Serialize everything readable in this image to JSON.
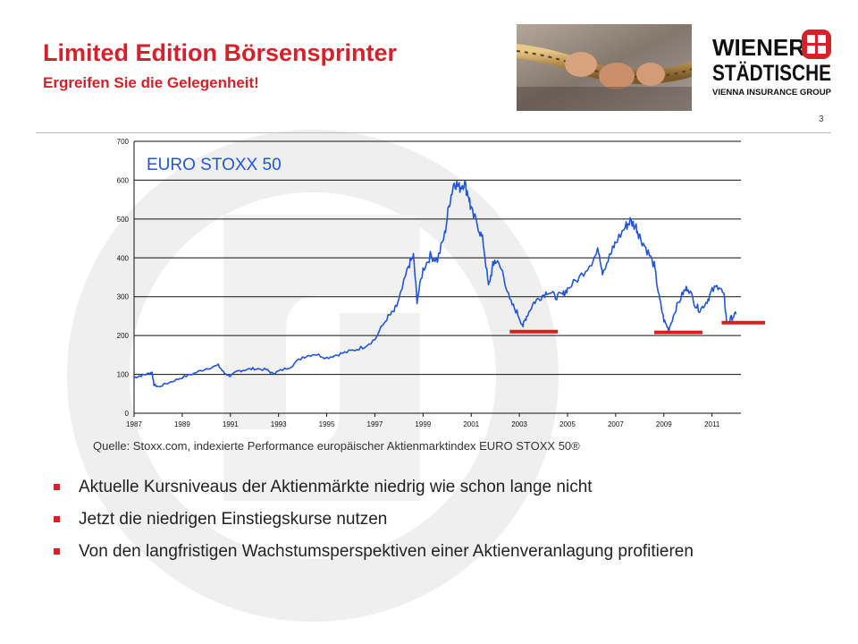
{
  "header": {
    "title": "Limited Edition Börsensprinter",
    "subtitle": "Ergreifen Sie die Gelegenheit!",
    "page_number": "3"
  },
  "logo": {
    "line1": "WIENER",
    "line2": "STÄDTISCHE",
    "line3": "VIENNA INSURANCE GROUP",
    "brand_color": "#d6212b"
  },
  "photo": {
    "subject": "hands-pulling-rope"
  },
  "chart_data": {
    "type": "line",
    "title": "EURO STOXX 50",
    "xlim": [
      1987,
      2012.2
    ],
    "ylim": [
      0,
      700
    ],
    "x_ticks": [
      "1987",
      "1989",
      "1991",
      "1993",
      "1995",
      "1997",
      "1999",
      "2001",
      "2003",
      "2005",
      "2007",
      "2009",
      "2011"
    ],
    "y_ticks": [
      "0",
      "100",
      "200",
      "300",
      "400",
      "500",
      "600",
      "700"
    ],
    "grid": true,
    "series": [
      {
        "color": "#2255d8",
        "points": [
          [
            1987.0,
            92
          ],
          [
            1987.3,
            97
          ],
          [
            1987.6,
            102
          ],
          [
            1987.75,
            105
          ],
          [
            1987.82,
            74
          ],
          [
            1988.0,
            68
          ],
          [
            1988.5,
            80
          ],
          [
            1989.0,
            92
          ],
          [
            1989.5,
            103
          ],
          [
            1990.0,
            115
          ],
          [
            1990.5,
            123
          ],
          [
            1990.75,
            103
          ],
          [
            1991.0,
            96
          ],
          [
            1991.3,
            108
          ],
          [
            1991.6,
            112
          ],
          [
            1992.0,
            115
          ],
          [
            1992.5,
            112
          ],
          [
            1992.75,
            102
          ],
          [
            1993.0,
            108
          ],
          [
            1993.5,
            120
          ],
          [
            1994.0,
            145
          ],
          [
            1994.5,
            153
          ],
          [
            1995.0,
            143
          ],
          [
            1995.5,
            152
          ],
          [
            1996.0,
            160
          ],
          [
            1996.5,
            170
          ],
          [
            1997.0,
            190
          ],
          [
            1997.5,
            245
          ],
          [
            1997.8,
            262
          ],
          [
            1998.0,
            290
          ],
          [
            1998.4,
            380
          ],
          [
            1998.6,
            405
          ],
          [
            1998.75,
            290
          ],
          [
            1999.0,
            370
          ],
          [
            1999.3,
            405
          ],
          [
            1999.6,
            395
          ],
          [
            1999.9,
            460
          ],
          [
            2000.1,
            545
          ],
          [
            2000.3,
            598
          ],
          [
            2000.5,
            580
          ],
          [
            2000.7,
            595
          ],
          [
            2000.9,
            560
          ],
          [
            2001.0,
            520
          ],
          [
            2001.3,
            480
          ],
          [
            2001.5,
            440
          ],
          [
            2001.72,
            325
          ],
          [
            2001.9,
            380
          ],
          [
            2002.0,
            395
          ],
          [
            2002.3,
            365
          ],
          [
            2002.6,
            290
          ],
          [
            2002.9,
            260
          ],
          [
            2003.15,
            225
          ],
          [
            2003.3,
            250
          ],
          [
            2003.6,
            285
          ],
          [
            2003.9,
            300
          ],
          [
            2004.2,
            315
          ],
          [
            2004.5,
            300
          ],
          [
            2004.8,
            305
          ],
          [
            2005.0,
            320
          ],
          [
            2005.5,
            350
          ],
          [
            2006.0,
            390
          ],
          [
            2006.3,
            420
          ],
          [
            2006.45,
            365
          ],
          [
            2006.8,
            410
          ],
          [
            2007.0,
            440
          ],
          [
            2007.4,
            480
          ],
          [
            2007.6,
            495
          ],
          [
            2007.85,
            480
          ],
          [
            2008.0,
            455
          ],
          [
            2008.3,
            420
          ],
          [
            2008.6,
            380
          ],
          [
            2008.8,
            300
          ],
          [
            2009.0,
            240
          ],
          [
            2009.2,
            215
          ],
          [
            2009.5,
            270
          ],
          [
            2009.8,
            310
          ],
          [
            2010.0,
            325
          ],
          [
            2010.3,
            280
          ],
          [
            2010.5,
            265
          ],
          [
            2010.8,
            290
          ],
          [
            2011.0,
            315
          ],
          [
            2011.3,
            330
          ],
          [
            2011.5,
            300
          ],
          [
            2011.62,
            230
          ],
          [
            2011.8,
            245
          ],
          [
            2012.0,
            255
          ]
        ]
      }
    ],
    "annotations": [
      {
        "type": "support_line",
        "x": [
          2002.6,
          2004.6
        ],
        "y": 210,
        "color": "#e01b1b"
      },
      {
        "type": "support_line",
        "x": [
          2008.6,
          2010.6
        ],
        "y": 208,
        "color": "#e01b1b"
      },
      {
        "type": "support_line",
        "x": [
          2011.4,
          2013.4
        ],
        "y": 233,
        "color": "#e01b1b"
      }
    ]
  },
  "source_note": "Quelle: Stoxx.com, indexierte Performance europäischer Aktienmarktindex EURO STOXX 50®",
  "bullets": [
    "Aktuelle Kursniveaus der Aktienmärkte niedrig wie schon lange nicht",
    "Jetzt die niedrigen Einstiegskurse nutzen",
    "Von den langfristigen Wachstumsperspektiven einer Aktienveranlagung profitieren"
  ],
  "colors": {
    "accent": "#d6212b",
    "chart_line": "#2255d8",
    "support_line": "#e01b1b"
  }
}
